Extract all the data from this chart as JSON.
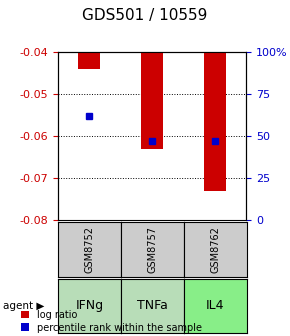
{
  "title": "GDS501 / 10559",
  "samples": [
    "GSM8752",
    "GSM8757",
    "GSM8762"
  ],
  "agents": [
    "IFNg",
    "TNFa",
    "IL4"
  ],
  "log_ratios": [
    -0.044,
    -0.063,
    -0.073
  ],
  "percentile_ranks": [
    62,
    47,
    47
  ],
  "ylim_left": [
    -0.08,
    -0.04
  ],
  "ylim_right": [
    0,
    100
  ],
  "yticks_left": [
    -0.08,
    -0.07,
    -0.06,
    -0.05,
    -0.04
  ],
  "yticks_right": [
    0,
    25,
    50,
    75,
    100
  ],
  "bar_color": "#cc0000",
  "dot_color": "#0000cc",
  "sample_bg_color": "#cccccc",
  "agent_bg_colors": [
    "#b8ddb8",
    "#b8ddb8",
    "#88ee88"
  ],
  "legend_bar_color": "#cc0000",
  "legend_dot_color": "#0000cc",
  "left_tick_color": "#cc0000",
  "right_tick_color": "#0000cc",
  "title_fontsize": 11,
  "tick_fontsize": 8,
  "legend_fontsize": 7,
  "agent_fontsize": 9,
  "sample_fontsize": 7
}
